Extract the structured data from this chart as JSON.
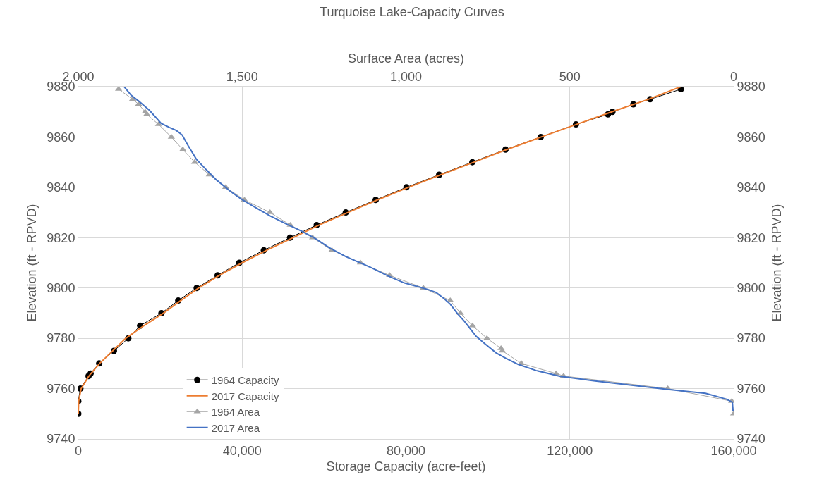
{
  "chart_data": {
    "type": "line",
    "title": "Turquoise Lake-Capacity Curves",
    "xlabel": "Storage Capacity (acre-feet)",
    "x2label": "Surface Area (acres)",
    "ylabel": "Elevation (ft - RPVD)",
    "y2label": "Elevation (ft - RPVD)",
    "xlim": [
      0,
      160000
    ],
    "xticks": [
      {
        "value": 0,
        "label": "0"
      },
      {
        "value": 40000,
        "label": "40,000"
      },
      {
        "value": 80000,
        "label": "80,000"
      },
      {
        "value": 120000,
        "label": "120,000"
      },
      {
        "value": 160000,
        "label": "160,000"
      }
    ],
    "x2lim": [
      2000,
      0
    ],
    "x2ticks": [
      {
        "value": 2000,
        "label": "2,000"
      },
      {
        "value": 1500,
        "label": "1,500"
      },
      {
        "value": 1000,
        "label": "1,000"
      },
      {
        "value": 500,
        "label": "500"
      },
      {
        "value": 0,
        "label": "0"
      }
    ],
    "ylim": [
      9740,
      9880
    ],
    "yticks": [
      9740,
      9760,
      9780,
      9800,
      9820,
      9840,
      9860,
      9880
    ],
    "y2lim": [
      9740,
      9880
    ],
    "y2ticks": [
      9740,
      9760,
      9780,
      9800,
      9820,
      9840,
      9860,
      9880
    ],
    "grid": true,
    "legend": "bottom left",
    "series": [
      {
        "name": "1964 Capacity",
        "color": "#000000",
        "marker": "circle",
        "x": [
          0,
          0,
          500,
          2500,
          3000,
          5100,
          8700,
          12200,
          15100,
          20300,
          24400,
          28900,
          34000,
          39300,
          45300,
          51700,
          58200,
          65300,
          72600,
          80100,
          88100,
          96200,
          104300,
          112900,
          121500,
          129300,
          130400,
          135500,
          139600,
          147100
        ],
        "values": [
          9750,
          9755,
          9760,
          9765,
          9766,
          9770,
          9775,
          9780,
          9785,
          9790,
          9795,
          9800,
          9805,
          9810,
          9815,
          9820,
          9825,
          9830,
          9835,
          9840,
          9845,
          9850,
          9855,
          9860,
          9865,
          9869,
          9870,
          9873,
          9875,
          9879
        ]
      },
      {
        "name": "2017 Capacity",
        "color": "#ed7d31",
        "marker": "none",
        "x": [
          0,
          100,
          700,
          2600,
          5200,
          8400,
          11600,
          16000,
          20800,
          25000,
          29400,
          34400,
          40000,
          46000,
          52400,
          58800,
          65800,
          73000,
          80600,
          88500,
          96600,
          104600,
          113000,
          121600,
          130200,
          139200,
          147100
        ],
        "values": [
          9750,
          9755,
          9760,
          9765,
          9770,
          9775,
          9780,
          9785,
          9790,
          9795,
          9800,
          9805,
          9810,
          9815,
          9820,
          9825,
          9830,
          9835,
          9840,
          9845,
          9850,
          9855,
          9860,
          9865,
          9870,
          9875,
          9880
        ]
      },
      {
        "name": "1964 Area",
        "color": "#a5a5a5",
        "marker": "triangle",
        "axis": "x2",
        "x": [
          1877,
          1834,
          1816,
          1796,
          1791,
          1755,
          1716,
          1681,
          1645,
          1600,
          1550,
          1493,
          1415,
          1353,
          1285,
          1226,
          1139,
          1050,
          947,
          865,
          834,
          797,
          753,
          710,
          706,
          648,
          542,
          519,
          201,
          6,
          0
        ],
        "values": [
          9879,
          9875,
          9873,
          9870,
          9869,
          9865,
          9860,
          9855,
          9850,
          9845,
          9840,
          9835,
          9830,
          9825,
          9820,
          9815,
          9810,
          9805,
          9800,
          9795,
          9790,
          9785,
          9780,
          9776,
          9775,
          9770,
          9766,
          9765,
          9760,
          9755,
          9750
        ]
      },
      {
        "name": "2017 Area",
        "color": "#4472c4",
        "marker": "none",
        "axis": "x2",
        "x": [
          1860,
          1839,
          1816,
          1783,
          1747,
          1722,
          1701,
          1683,
          1665,
          1640,
          1608,
          1579,
          1536,
          1500,
          1457,
          1414,
          1363,
          1317,
          1277,
          1234,
          1184,
          1105,
          1055,
          1005,
          933,
          908,
          886,
          865,
          843,
          822,
          804,
          786,
          761,
          725,
          696,
          657,
          603,
          531,
          423,
          316,
          201,
          86,
          22,
          4,
          2
        ],
        "values": [
          9880,
          9876.6,
          9874.3,
          9870.6,
          9865.4,
          9863.8,
          9862.6,
          9860.8,
          9856.6,
          9851.2,
          9846.8,
          9843,
          9838.4,
          9835.1,
          9831.8,
          9828.6,
          9825.3,
          9822.5,
          9819.7,
          9816,
          9812.5,
          9808,
          9804.8,
          9802,
          9799.4,
          9798.2,
          9796,
          9793.6,
          9789.8,
          9786.8,
          9783.8,
          9780.8,
          9778,
          9774.2,
          9772.1,
          9769.6,
          9767.2,
          9764.9,
          9763,
          9761.4,
          9759.7,
          9758.1,
          9755.8,
          9754.6,
          9751
        ]
      }
    ]
  }
}
